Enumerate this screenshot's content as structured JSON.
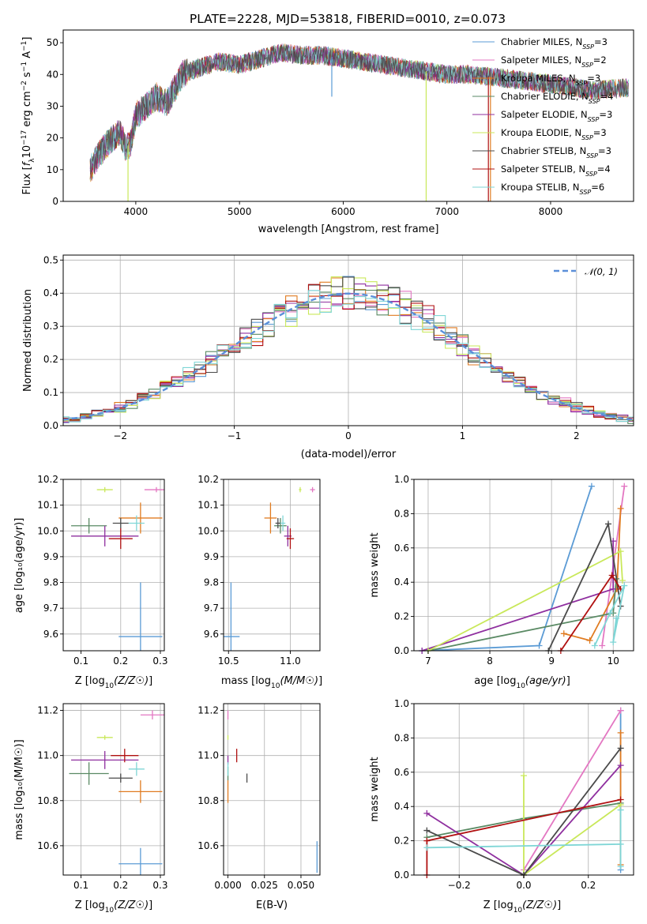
{
  "title": "PLATE=2228, MJD=53818, FIBERID=0010, z=0.073",
  "colors": {
    "Chabrier MILES": "#5b9bd5",
    "Salpeter MILES": "#e377c2",
    "Kroupa MILES": "#e07b20",
    "Chabrier ELODIE": "#5a8a64",
    "Salpeter ELODIE": "#8f2f9f",
    "Kroupa ELODIE": "#c9e85a",
    "Chabrier STELIB": "#4a4a4a",
    "Salpeter STELIB": "#b01010",
    "Kroupa STELIB": "#7fd6d6",
    "gauss": "#5b8fd9"
  },
  "legend": {
    "entries": [
      {
        "name": "Chabrier MILES",
        "nssp": "3"
      },
      {
        "name": "Salpeter MILES",
        "nssp": "2"
      },
      {
        "name": "Kroupa MILES",
        "nssp": "3"
      },
      {
        "name": "Chabrier ELODIE",
        "nssp": "4"
      },
      {
        "name": "Salpeter ELODIE",
        "nssp": "3"
      },
      {
        "name": "Kroupa ELODIE",
        "nssp": "3"
      },
      {
        "name": "Chabrier STELIB",
        "nssp": "3"
      },
      {
        "name": "Salpeter STELIB",
        "nssp": "4"
      },
      {
        "name": "Kroupa STELIB",
        "nssp": "6"
      }
    ],
    "prefix": "N",
    "subscript": "SSP"
  },
  "chart_data": [
    {
      "type": "line",
      "id": "spectrum",
      "xlabel": "wavelength [Angstrom, rest frame]",
      "ylabel": "Flux [f_λ 10^-17 erg cm^-2 s^-1 A^-1]",
      "xlim": [
        3300,
        8800
      ],
      "ylim": [
        0,
        54
      ],
      "xticks": [
        4000,
        5000,
        6000,
        7000,
        8000
      ],
      "yticks": [
        0,
        10,
        20,
        30,
        40,
        50
      ],
      "anchors": [
        [
          3560,
          10
        ],
        [
          3650,
          15
        ],
        [
          3750,
          19
        ],
        [
          3850,
          22
        ],
        [
          3900,
          17
        ],
        [
          3950,
          18
        ],
        [
          4000,
          27
        ],
        [
          4100,
          30
        ],
        [
          4200,
          33
        ],
        [
          4300,
          31
        ],
        [
          4350,
          34
        ],
        [
          4450,
          40
        ],
        [
          4600,
          42
        ],
        [
          4800,
          44
        ],
        [
          5000,
          43
        ],
        [
          5200,
          45
        ],
        [
          5400,
          47
        ],
        [
          5600,
          46
        ],
        [
          5800,
          46
        ],
        [
          6000,
          45
        ],
        [
          6200,
          44
        ],
        [
          6400,
          43
        ],
        [
          6600,
          42
        ],
        [
          6800,
          41
        ],
        [
          7000,
          40
        ],
        [
          7200,
          40
        ],
        [
          7500,
          39
        ],
        [
          8000,
          37
        ],
        [
          8400,
          35
        ],
        [
          8800,
          36
        ]
      ],
      "spikes": [
        [
          3925,
          -5,
          "Kroupa ELODIE"
        ],
        [
          5890,
          33,
          "Chabrier MILES"
        ],
        [
          6800,
          0,
          "Kroupa ELODIE"
        ],
        [
          7400,
          0,
          "Salpeter STELIB"
        ],
        [
          7420,
          0,
          "Kroupa MILES"
        ]
      ]
    },
    {
      "type": "histogram",
      "id": "residuals",
      "xlabel": "(data-model)/error",
      "ylabel": "Normed distribution",
      "xlim": [
        -2.5,
        2.5
      ],
      "ylim": [
        0,
        0.515
      ],
      "xticks": [
        -2,
        -1,
        0,
        1,
        2
      ],
      "yticks": [
        0.0,
        0.1,
        0.2,
        0.3,
        0.4,
        0.5
      ],
      "bin_width": 0.1,
      "gauss_label": "𝒩(0, 1)"
    },
    {
      "type": "scatter",
      "id": "age-Z",
      "xlabel": "Z [log10(Z/Z☉)]",
      "ylabel": "age [log10(age/yr)]",
      "xlim": [
        0.055,
        0.31
      ],
      "ylim": [
        9.535,
        10.2
      ],
      "xticks": [
        0.1,
        0.2,
        0.3
      ],
      "yticks": [
        9.6,
        9.7,
        9.8,
        9.9,
        10.0,
        10.1,
        10.2
      ],
      "points": [
        {
          "model": "Chabrier MILES",
          "x": 0.25,
          "y": 9.59,
          "xe": 0.055,
          "ye": 0.21
        },
        {
          "model": "Salpeter MILES",
          "x": 0.29,
          "y": 10.16,
          "xe": 0.03,
          "ye": 0.01
        },
        {
          "model": "Kroupa MILES",
          "x": 0.25,
          "y": 10.05,
          "xe": 0.055,
          "ye": 0.06
        },
        {
          "model": "Chabrier ELODIE",
          "x": 0.12,
          "y": 10.02,
          "xe": 0.045,
          "ye": 0.03
        },
        {
          "model": "Salpeter ELODIE",
          "x": 0.16,
          "y": 9.98,
          "xe": 0.085,
          "ye": 0.04
        },
        {
          "model": "Kroupa ELODIE",
          "x": 0.16,
          "y": 10.16,
          "xe": 0.02,
          "ye": 0.01
        },
        {
          "model": "Chabrier STELIB",
          "x": 0.2,
          "y": 10.03,
          "xe": 0.02,
          "ye": 0.02
        },
        {
          "model": "Salpeter STELIB",
          "x": 0.2,
          "y": 9.97,
          "xe": 0.03,
          "ye": 0.04
        },
        {
          "model": "Kroupa STELIB",
          "x": 0.24,
          "y": 10.03,
          "xe": 0.02,
          "ye": 0.03
        }
      ]
    },
    {
      "type": "scatter",
      "id": "age-mass",
      "xlabel": "mass [log10(M/M☉)]",
      "ylabel": "",
      "xlim": [
        10.46,
        11.24
      ],
      "ylim": [
        9.535,
        10.2
      ],
      "xticks": [
        10.5,
        11.0
      ],
      "yticks": [
        9.6,
        9.7,
        9.8,
        9.9,
        10.0,
        10.1,
        10.2
      ],
      "points": [
        {
          "model": "Chabrier MILES",
          "x": 10.52,
          "y": 9.59,
          "xe": 0.07,
          "ye": 0.21
        },
        {
          "model": "Salpeter MILES",
          "x": 11.18,
          "y": 10.16,
          "xe": 0.02,
          "ye": 0.01
        },
        {
          "model": "Kroupa MILES",
          "x": 10.84,
          "y": 10.05,
          "xe": 0.05,
          "ye": 0.06
        },
        {
          "model": "Chabrier ELODIE",
          "x": 10.92,
          "y": 10.02,
          "xe": 0.05,
          "ye": 0.03
        },
        {
          "model": "Salpeter ELODIE",
          "x": 10.98,
          "y": 9.98,
          "xe": 0.03,
          "ye": 0.04
        },
        {
          "model": "Kroupa ELODIE",
          "x": 11.08,
          "y": 10.16,
          "xe": 0.01,
          "ye": 0.01
        },
        {
          "model": "Chabrier STELIB",
          "x": 10.9,
          "y": 10.03,
          "xe": 0.02,
          "ye": 0.02
        },
        {
          "model": "Salpeter STELIB",
          "x": 11.0,
          "y": 9.97,
          "xe": 0.03,
          "ye": 0.04
        },
        {
          "model": "Kroupa STELIB",
          "x": 10.94,
          "y": 10.03,
          "xe": 0.02,
          "ye": 0.03
        }
      ]
    },
    {
      "type": "line",
      "id": "weight-age",
      "xlabel": "age [log10(age/yr)]",
      "ylabel": "mass weight",
      "xlim": [
        6.77,
        10.33
      ],
      "ylim": [
        0,
        1.0
      ],
      "xticks": [
        7,
        8,
        9,
        10
      ],
      "yticks": [
        0.0,
        0.2,
        0.4,
        0.6,
        0.8,
        1.0
      ],
      "series": [
        {
          "model": "Chabrier MILES",
          "points": [
            [
              6.9,
              0.0
            ],
            [
              8.8,
              0.03
            ],
            [
              9.65,
              0.96
            ]
          ]
        },
        {
          "model": "Salpeter MILES",
          "points": [
            [
              9.82,
              0.03
            ],
            [
              10.18,
              0.96
            ]
          ]
        },
        {
          "model": "Kroupa MILES",
          "points": [
            [
              9.2,
              0.1
            ],
            [
              9.62,
              0.06
            ],
            [
              10.06,
              0.36
            ],
            [
              10.12,
              0.83
            ]
          ]
        },
        {
          "model": "Chabrier ELODIE",
          "points": [
            [
              7.0,
              0.0
            ],
            [
              10.0,
              0.22
            ],
            [
              10.05,
              0.42
            ]
          ]
        },
        {
          "model": "Salpeter ELODIE",
          "points": [
            [
              6.9,
              0.0
            ],
            [
              10.0,
              0.36
            ],
            [
              10.0,
              0.64
            ]
          ]
        },
        {
          "model": "Kroupa ELODIE",
          "points": [
            [
              7.0,
              0.0
            ],
            [
              10.12,
              0.58
            ],
            [
              10.15,
              0.41
            ]
          ]
        },
        {
          "model": "Chabrier STELIB",
          "points": [
            [
              8.95,
              0.0
            ],
            [
              9.92,
              0.74
            ],
            [
              10.12,
              0.26
            ]
          ]
        },
        {
          "model": "Salpeter STELIB",
          "points": [
            [
              9.15,
              0.0
            ],
            [
              9.98,
              0.44
            ],
            [
              10.12,
              0.36
            ]
          ]
        },
        {
          "model": "Kroupa STELIB",
          "points": [
            [
              9.7,
              0.03
            ],
            [
              9.95,
              0.22
            ],
            [
              10.18,
              0.38
            ],
            [
              10.0,
              0.05
            ],
            [
              10.05,
              0.19
            ]
          ]
        }
      ]
    },
    {
      "type": "scatter",
      "id": "mass-Z",
      "xlabel": "Z [log10(Z/Z☉)]",
      "ylabel": "mass [log10(M/M☉)]",
      "xlim": [
        0.055,
        0.31
      ],
      "ylim": [
        10.47,
        11.23
      ],
      "xticks": [
        0.1,
        0.2,
        0.3
      ],
      "yticks": [
        10.6,
        10.8,
        11.0,
        11.2
      ],
      "points": [
        {
          "model": "Chabrier MILES",
          "x": 0.25,
          "y": 10.52,
          "xe": 0.055,
          "ye": 0.07
        },
        {
          "model": "Salpeter MILES",
          "x": 0.28,
          "y": 11.18,
          "xe": 0.03,
          "ye": 0.02
        },
        {
          "model": "Kroupa MILES",
          "x": 0.25,
          "y": 10.84,
          "xe": 0.055,
          "ye": 0.05
        },
        {
          "model": "Chabrier ELODIE",
          "x": 0.12,
          "y": 10.92,
          "xe": 0.05,
          "ye": 0.05
        },
        {
          "model": "Salpeter ELODIE",
          "x": 0.16,
          "y": 10.98,
          "xe": 0.085,
          "ye": 0.04
        },
        {
          "model": "Kroupa ELODIE",
          "x": 0.16,
          "y": 11.08,
          "xe": 0.02,
          "ye": 0.01
        },
        {
          "model": "Chabrier STELIB",
          "x": 0.2,
          "y": 10.9,
          "xe": 0.03,
          "ye": 0.02
        },
        {
          "model": "Salpeter STELIB",
          "x": 0.21,
          "y": 11.0,
          "xe": 0.035,
          "ye": 0.03
        },
        {
          "model": "Kroupa STELIB",
          "x": 0.24,
          "y": 10.94,
          "xe": 0.02,
          "ye": 0.03
        }
      ]
    },
    {
      "type": "scatter",
      "id": "mass-EBV",
      "xlabel": "E(B-V)",
      "ylabel": "",
      "xlim": [
        -0.003,
        0.063
      ],
      "ylim": [
        10.47,
        11.23
      ],
      "xticks": [
        0.0,
        0.025,
        0.05
      ],
      "yticks": [
        10.6,
        10.8,
        11.0,
        11.2
      ],
      "points": [
        {
          "model": "Chabrier MILES",
          "x": 0.061,
          "y": 10.55,
          "xe": 0.0,
          "ye": 0.07
        },
        {
          "model": "Salpeter MILES",
          "x": 0.0,
          "y": 11.18,
          "xe": 0.0,
          "ye": 0.02
        },
        {
          "model": "Kroupa MILES",
          "x": 0.0,
          "y": 10.84,
          "xe": 0.0,
          "ye": 0.05
        },
        {
          "model": "Chabrier ELODIE",
          "x": 0.0,
          "y": 10.92,
          "xe": 0.0,
          "ye": 0.03
        },
        {
          "model": "Salpeter ELODIE",
          "x": 0.0,
          "y": 10.98,
          "xe": 0.0,
          "ye": 0.02
        },
        {
          "model": "Kroupa ELODIE",
          "x": 0.0,
          "y": 11.08,
          "xe": 0.0,
          "ye": 0.01
        },
        {
          "model": "Chabrier STELIB",
          "x": 0.013,
          "y": 10.9,
          "xe": 0.0,
          "ye": 0.02
        },
        {
          "model": "Salpeter STELIB",
          "x": 0.006,
          "y": 11.0,
          "xe": 0.0,
          "ye": 0.03
        },
        {
          "model": "Kroupa STELIB",
          "x": 0.0,
          "y": 10.94,
          "xe": 0.0,
          "ye": 0.03
        }
      ]
    },
    {
      "type": "line",
      "id": "weight-Z",
      "xlabel": "Z [log10(Z/Z☉)]",
      "ylabel": "mass weight",
      "xlim": [
        -0.34,
        0.34
      ],
      "ylim": [
        0,
        1.0
      ],
      "xticks": [
        -0.2,
        0.0,
        0.2
      ],
      "yticks": [
        0.0,
        0.2,
        0.4,
        0.6,
        0.8,
        1.0
      ],
      "series": [
        {
          "model": "Chabrier MILES",
          "points": [
            [
              0.3,
              0.96
            ],
            [
              0.3,
              0.03
            ]
          ]
        },
        {
          "model": "Salpeter MILES",
          "points": [
            [
              0.0,
              0.03
            ],
            [
              0.3,
              0.96
            ]
          ]
        },
        {
          "model": "Kroupa MILES",
          "points": [
            [
              0.3,
              0.83
            ],
            [
              0.3,
              0.06
            ]
          ]
        },
        {
          "model": "Chabrier ELODIE",
          "points": [
            [
              -0.3,
              0.22
            ],
            [
              0.0,
              0.33
            ],
            [
              0.3,
              0.42
            ]
          ]
        },
        {
          "model": "Salpeter ELODIE",
          "points": [
            [
              -0.3,
              0.36
            ],
            [
              0.0,
              0.0
            ],
            [
              0.3,
              0.64
            ]
          ]
        },
        {
          "model": "Kroupa ELODIE",
          "points": [
            [
              0.0,
              0.58
            ],
            [
              0.0,
              0.0
            ],
            [
              0.3,
              0.41
            ]
          ]
        },
        {
          "model": "Chabrier STELIB",
          "points": [
            [
              -0.3,
              0.26
            ],
            [
              0.0,
              0.0
            ],
            [
              0.3,
              0.74
            ]
          ]
        },
        {
          "model": "Salpeter STELIB",
          "points": [
            [
              -0.3,
              0.0
            ],
            [
              -0.3,
              0.2
            ],
            [
              0.3,
              0.44
            ]
          ]
        },
        {
          "model": "Kroupa STELIB",
          "points": [
            [
              -0.3,
              0.16
            ],
            [
              0.3,
              0.18
            ],
            [
              0.3,
              0.38
            ],
            [
              0.3,
              0.05
            ]
          ]
        }
      ]
    }
  ]
}
